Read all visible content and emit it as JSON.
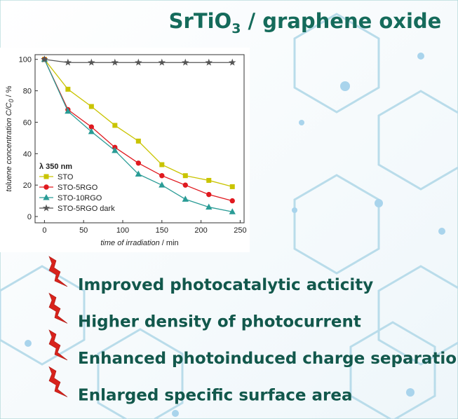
{
  "header": {
    "title": {
      "main": "SrTiO",
      "sub": "3",
      "rest": " / graphene oxide"
    }
  },
  "chart_data": {
    "type": "line",
    "x": [
      0,
      30,
      60,
      90,
      120,
      150,
      180,
      210,
      240
    ],
    "series": [
      {
        "name": "STO",
        "color": "#c9c400",
        "marker": "square",
        "values": [
          100,
          81,
          70,
          58,
          48,
          33,
          26,
          23,
          19
        ]
      },
      {
        "name": "STO-5RGO",
        "color": "#e0191f",
        "marker": "circle",
        "values": [
          100,
          68,
          57,
          44,
          34,
          26,
          20,
          14,
          10
        ]
      },
      {
        "name": "STO-10RGO",
        "color": "#2a9c96",
        "marker": "triangle",
        "values": [
          100,
          67,
          54,
          42,
          27,
          20,
          11,
          6,
          3
        ]
      },
      {
        "name": "STO-5RGO dark",
        "color": "#555555",
        "marker": "star",
        "values": [
          100,
          98,
          98,
          98,
          98,
          98,
          98,
          98,
          98
        ]
      }
    ],
    "xlim": [
      -12,
      255
    ],
    "xticks": [
      0,
      50,
      100,
      150,
      200,
      250
    ],
    "ylim": [
      -4,
      103
    ],
    "yticks": [
      0,
      20,
      40,
      60,
      80,
      100
    ],
    "xlabel": {
      "italic": "time of irradiation",
      "rest": " / min"
    },
    "ylabel": {
      "main": "toluene concentration C/C",
      "sub": "0",
      "rest": " / %"
    },
    "legend_title": "λ 350 nm",
    "legend": "lower left"
  },
  "bullets": [
    "Improved photocatalytic acticity",
    "Higher density of photocurrent",
    "Enhanced photoinduced charge separation",
    "Enlarged specific surface area"
  ]
}
